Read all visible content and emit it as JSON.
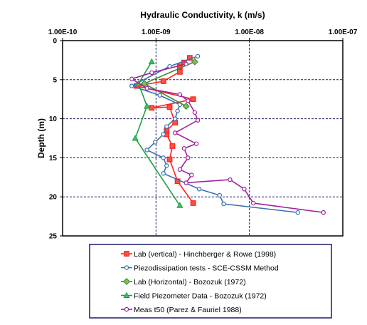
{
  "chart_data": {
    "type": "line",
    "title": "Hydraulic  Conductivity,  k (m/s)",
    "ylabel": "Depth (m)",
    "x_scale": "log",
    "xlim": [
      1e-10,
      1e-07
    ],
    "ylim": [
      0,
      25
    ],
    "y_inverted": true,
    "x_tick_labels": [
      "1.00E-10",
      "1.00E-09",
      "1.00E-08",
      "1.00E-07"
    ],
    "y_ticks": [
      0,
      5,
      10,
      15,
      20,
      25
    ],
    "grid": "dashed major gridlines",
    "legend_position": "bottom",
    "series": [
      {
        "name": "Lab (vertical) - Hinchberger & Rowe (1998)",
        "color": "#ff2020",
        "fill": "#ff5040",
        "marker": "square",
        "points": [
          [
            2.3e-09,
            2.2
          ],
          [
            2e-09,
            2.8
          ],
          [
            1.8e-09,
            3.3
          ],
          [
            1.8e-09,
            4.0
          ],
          [
            1.2e-09,
            5.2
          ],
          [
            6.2e-10,
            5.8
          ],
          [
            2.5e-09,
            7.5
          ],
          [
            9e-10,
            8.6
          ],
          [
            1.4e-09,
            8.5
          ],
          [
            1.6e-09,
            10.5
          ],
          [
            1.3e-09,
            11.5
          ],
          [
            1.3e-09,
            12.0
          ],
          [
            1.5e-09,
            13.5
          ],
          [
            1.4e-09,
            15.2
          ],
          [
            1.7e-09,
            18.0
          ],
          [
            2.5e-09,
            20.8
          ]
        ]
      },
      {
        "name": "Piezodissipation tests - SCE-CSSM Method",
        "color": "#3a6fb0",
        "fill": "#ffffff",
        "marker": "circle",
        "points": [
          [
            2.8e-09,
            2.0
          ],
          [
            1.4e-09,
            3.3
          ],
          [
            5.5e-10,
            5.8
          ],
          [
            1.1e-09,
            7.0
          ],
          [
            1.8e-09,
            8.2
          ],
          [
            1.7e-09,
            9.0
          ],
          [
            1.6e-09,
            10.0
          ],
          [
            1.3e-09,
            11.0
          ],
          [
            1.2e-09,
            12.0
          ],
          [
            9.8e-10,
            13.0
          ],
          [
            8e-10,
            14.0
          ],
          [
            1.2e-09,
            15.0
          ],
          [
            1.3e-09,
            16.0
          ],
          [
            1.2e-09,
            17.0
          ],
          [
            2.9e-09,
            19.0
          ],
          [
            4.8e-09,
            19.8
          ],
          [
            5.3e-09,
            20.9
          ],
          [
            3.3e-08,
            22.0
          ]
        ]
      },
      {
        "name": "Lab (Horizontal) - Bozozuk (1972)",
        "color": "#3a8a30",
        "fill": "#80c050",
        "marker": "diamond",
        "points": [
          [
            2.6e-09,
            2.7
          ],
          [
            7.5e-10,
            5.5
          ],
          [
            2.1e-09,
            8.4
          ]
        ]
      },
      {
        "name": "Field Piezometer Data",
        "name_suffix": " - Bozozuk (1972)",
        "color": "#20a040",
        "fill": "#40c060",
        "marker": "triangle",
        "points": [
          [
            9e-10,
            2.7
          ],
          [
            6.5e-10,
            5.5
          ],
          [
            8e-10,
            8.4
          ],
          [
            6e-10,
            12.5
          ],
          [
            1.8e-09,
            21.1
          ]
        ]
      },
      {
        "name": "Meas t50 (Parez & Fauriel 1988)",
        "color": "#a020a0",
        "fill": "#ffffff",
        "marker": "circle",
        "points": [
          [
            2.1e-09,
            3.0
          ],
          [
            9e-10,
            4.1
          ],
          [
            5.5e-10,
            4.9
          ],
          [
            8e-10,
            6.1
          ],
          [
            1.8e-09,
            6.9
          ],
          [
            2.2e-09,
            7.7
          ],
          [
            2.6e-09,
            9.2
          ],
          [
            2.8e-09,
            10.2
          ],
          [
            1.6e-09,
            11.8
          ],
          [
            2.7e-09,
            13.2
          ],
          [
            2e-09,
            13.8
          ],
          [
            2.2e-09,
            15.0
          ],
          [
            1.8e-09,
            16.5
          ],
          [
            2.4e-09,
            17.2
          ],
          [
            2.1e-09,
            18.2
          ],
          [
            6.2e-09,
            17.8
          ],
          [
            8.8e-09,
            19.0
          ],
          [
            1.1e-08,
            20.8
          ],
          [
            6.2e-08,
            22.0
          ]
        ]
      }
    ]
  }
}
